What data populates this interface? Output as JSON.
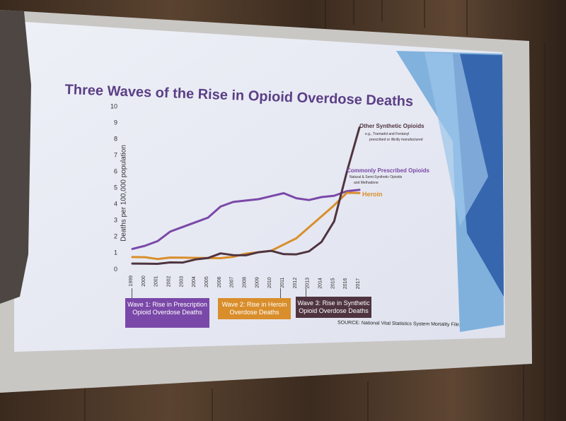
{
  "slide": {
    "title": "Three Waves of the Rise in Opioid Overdose Deaths",
    "source": "SOURCE: National Vital Statistics System Mortality File."
  },
  "waves": [
    {
      "label": "Wave 1: Rise in Prescription Opioid Overdose Deaths",
      "color": "#7a48a8"
    },
    {
      "label": "Wave 2: Rise in Heroin Overdose Deaths",
      "color": "#d98e2b"
    },
    {
      "label": "Wave 3: Rise in Synthetic Opioid Overdose Deaths",
      "color": "#4f3440"
    }
  ],
  "chart_data": {
    "type": "line",
    "title": "Three Waves of the Rise in Opioid Overdose Deaths",
    "xlabel": "",
    "ylabel": "Deaths per 100,000 population",
    "ylim": [
      0,
      10
    ],
    "yticks": [
      "0",
      "1",
      "2",
      "3",
      "4",
      "5",
      "6",
      "7",
      "8",
      "9",
      "10"
    ],
    "x": [
      "1999",
      "2000",
      "2001",
      "2002",
      "2003",
      "2004",
      "2005",
      "2006",
      "2007",
      "2008",
      "2009",
      "2010",
      "2011",
      "2012",
      "2013",
      "2014",
      "2015",
      "2016",
      "2017"
    ],
    "grid": false,
    "series": [
      {
        "name": "Commonly Prescribed Opioids",
        "sublabel": "Natural & Semi-Synthetic Opioids and Methadone",
        "color": "#7a48a8",
        "values": [
          1.2,
          1.4,
          1.7,
          2.3,
          2.6,
          2.9,
          3.2,
          3.9,
          4.2,
          4.3,
          4.4,
          4.6,
          4.8,
          4.5,
          4.4,
          4.6,
          4.7,
          5.0,
          5.1
        ]
      },
      {
        "name": "Heroin",
        "color": "#d98e2b",
        "values": [
          0.7,
          0.7,
          0.6,
          0.7,
          0.7,
          0.7,
          0.7,
          0.7,
          0.8,
          1.0,
          1.1,
          1.2,
          1.6,
          2.0,
          2.7,
          3.4,
          4.1,
          4.9,
          4.9
        ]
      },
      {
        "name": "Other Synthetic Opioids",
        "sublabel": "e.g., Tramadol and Fentanyl, prescribed or illicitly manufactured",
        "color": "#4f3440",
        "values": [
          0.3,
          0.3,
          0.3,
          0.4,
          0.4,
          0.6,
          0.7,
          1.0,
          0.9,
          0.9,
          1.1,
          1.2,
          1.0,
          1.0,
          1.2,
          1.8,
          3.1,
          6.2,
          9.0
        ]
      }
    ]
  }
}
